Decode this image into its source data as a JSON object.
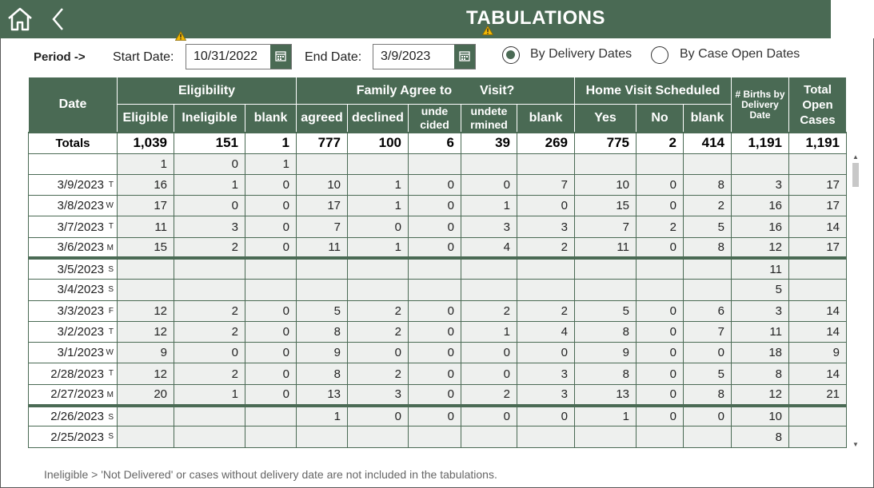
{
  "header": {
    "title": "TABULATIONS",
    "home_icon": "home-icon",
    "back_icon": "chevron-left-icon",
    "warning_icon": "warning-icon"
  },
  "filters": {
    "period_label": "Period ->",
    "start_label": "Start Date:",
    "start_value": "10/31/2022",
    "end_label": "End Date:",
    "end_value": "3/9/2023",
    "calendar_icon": "calendar-icon",
    "radio_options": [
      {
        "label": "By Delivery Dates",
        "selected": true
      },
      {
        "label": "By Case Open Dates",
        "selected": false
      }
    ]
  },
  "table": {
    "groups": {
      "date": "Date",
      "eligibility": "Eligibility",
      "family_agree": "Family Agree to",
      "visit": "Visit?",
      "home_visit": "Home Visit Scheduled",
      "births": "# Births by Delivery Date",
      "total_open": "Total Open Cases"
    },
    "subcols": [
      "Eligible",
      "Ineligible",
      "blank",
      "agreed",
      "declined",
      "unde cided",
      "undete rmined",
      "blank",
      "Yes",
      "No",
      "blank"
    ],
    "totals": {
      "label": "Totals",
      "values": [
        "1,039",
        "151",
        "1",
        "777",
        "100",
        "6",
        "39",
        "269",
        "775",
        "2",
        "414",
        "1,191",
        "1,191"
      ]
    },
    "rows": [
      {
        "date": "",
        "dow": "",
        "values": [
          "1",
          "0",
          "1",
          "",
          "",
          "",
          "",
          "",
          "",
          "",
          "",
          "",
          ""
        ],
        "week_start": false
      },
      {
        "date": "3/9/2023",
        "dow": "T",
        "values": [
          "16",
          "1",
          "0",
          "10",
          "1",
          "0",
          "0",
          "7",
          "10",
          "0",
          "8",
          "3",
          "17"
        ],
        "week_start": false
      },
      {
        "date": "3/8/2023",
        "dow": "W",
        "values": [
          "17",
          "0",
          "0",
          "17",
          "1",
          "0",
          "1",
          "0",
          "15",
          "0",
          "2",
          "16",
          "17"
        ],
        "week_start": false
      },
      {
        "date": "3/7/2023",
        "dow": "T",
        "values": [
          "11",
          "3",
          "0",
          "7",
          "0",
          "0",
          "3",
          "3",
          "7",
          "2",
          "5",
          "16",
          "14"
        ],
        "week_start": false
      },
      {
        "date": "3/6/2023",
        "dow": "M",
        "values": [
          "15",
          "2",
          "0",
          "11",
          "1",
          "0",
          "4",
          "2",
          "11",
          "0",
          "8",
          "12",
          "17"
        ],
        "week_start": false
      },
      {
        "date": "3/5/2023",
        "dow": "S",
        "values": [
          "",
          "",
          "",
          "",
          "",
          "",
          "",
          "",
          "",
          "",
          "",
          "11",
          ""
        ],
        "week_start": true
      },
      {
        "date": "3/4/2023",
        "dow": "S",
        "values": [
          "",
          "",
          "",
          "",
          "",
          "",
          "",
          "",
          "",
          "",
          "",
          "5",
          ""
        ],
        "week_start": false
      },
      {
        "date": "3/3/2023",
        "dow": "F",
        "values": [
          "12",
          "2",
          "0",
          "5",
          "2",
          "0",
          "2",
          "2",
          "5",
          "0",
          "6",
          "3",
          "14"
        ],
        "week_start": false
      },
      {
        "date": "3/2/2023",
        "dow": "T",
        "values": [
          "12",
          "2",
          "0",
          "8",
          "2",
          "0",
          "1",
          "4",
          "8",
          "0",
          "7",
          "11",
          "14"
        ],
        "week_start": false
      },
      {
        "date": "3/1/2023",
        "dow": "W",
        "values": [
          "9",
          "0",
          "0",
          "9",
          "0",
          "0",
          "0",
          "0",
          "9",
          "0",
          "0",
          "18",
          "9"
        ],
        "week_start": false
      },
      {
        "date": "2/28/2023",
        "dow": "T",
        "values": [
          "12",
          "2",
          "0",
          "8",
          "2",
          "0",
          "0",
          "3",
          "8",
          "0",
          "5",
          "8",
          "14"
        ],
        "week_start": false
      },
      {
        "date": "2/27/2023",
        "dow": "M",
        "values": [
          "20",
          "1",
          "0",
          "13",
          "3",
          "0",
          "2",
          "3",
          "13",
          "0",
          "8",
          "12",
          "21"
        ],
        "week_start": false
      },
      {
        "date": "2/26/2023",
        "dow": "S",
        "values": [
          "",
          "",
          "",
          "1",
          "0",
          "0",
          "0",
          "0",
          "1",
          "0",
          "0",
          "10",
          ""
        ],
        "week_start": true
      },
      {
        "date": "2/25/2023",
        "dow": "S",
        "values": [
          "",
          "",
          "",
          "",
          "",
          "",
          "",
          "",
          "",
          "",
          "",
          "8",
          ""
        ],
        "week_start": false
      }
    ]
  },
  "footnote": "Ineligible > 'Not Delivered' or cases without delivery date are not included in the tabulations.",
  "colors": {
    "accent": "#4a6a54",
    "cell_bg": "#eef0ee"
  }
}
